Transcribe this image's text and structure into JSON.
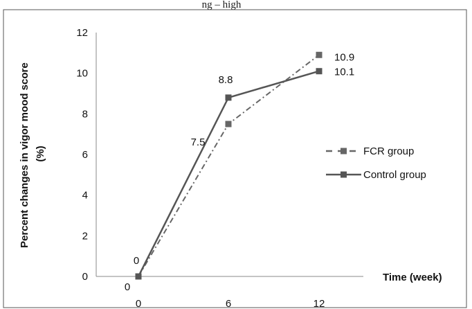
{
  "top_caption": "ng – high",
  "chart_data": {
    "type": "line",
    "x": [
      0,
      6,
      12
    ],
    "x_tick_labels": [
      "0",
      "6",
      "12"
    ],
    "xlabel": "Time (week)",
    "ylabel": "Percent changes in vigor mood score (%)",
    "ylabel_lines": [
      "Percent changes in vigor mood score",
      "(%)"
    ],
    "ylim": [
      0,
      12
    ],
    "y_ticks": [
      0,
      2,
      4,
      6,
      8,
      10,
      12
    ],
    "grid": false,
    "legend_position": "right",
    "series": [
      {
        "name": "FCR group",
        "values": [
          0,
          7.5,
          10.9
        ],
        "labels": [
          "0",
          "7.5",
          "10.9"
        ],
        "line_style": "dash-dot",
        "color": "#666666"
      },
      {
        "name": "Control group",
        "values": [
          0,
          8.8,
          10.1
        ],
        "labels": [
          "0",
          "8.8",
          "10.1"
        ],
        "line_style": "solid",
        "color": "#555555"
      }
    ]
  }
}
